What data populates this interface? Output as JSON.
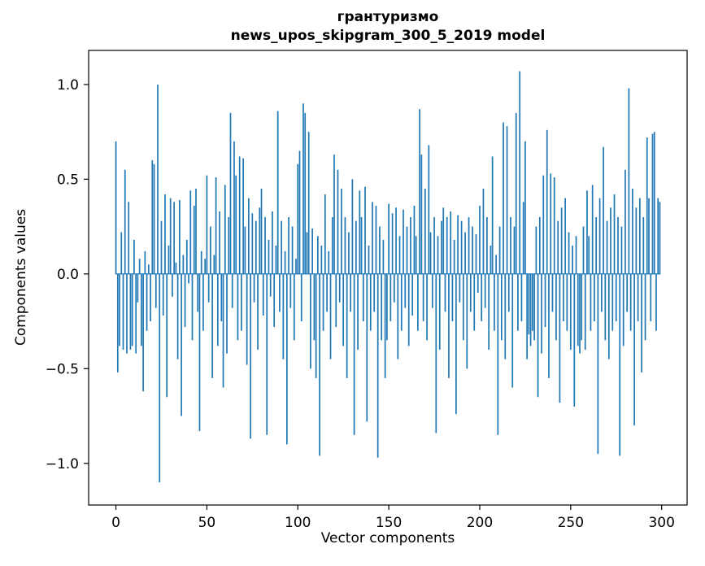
{
  "figure": {
    "title_line1": "грантуризмо",
    "title_line2": "news_upos_skipgram_300_5_2019 model",
    "xlabel": "Vector components",
    "ylabel": "Components values"
  },
  "chart_data": {
    "type": "bar",
    "title": "грантуризмо",
    "subtitle": "news_upos_skipgram_300_5_2019 model",
    "xlabel": "Vector components",
    "ylabel": "Components values",
    "grid": false,
    "legend": false,
    "bar_color": "#1f77b4",
    "xlim": [
      -15,
      314
    ],
    "ylim": [
      -1.22,
      1.18
    ],
    "xticks": [
      0,
      50,
      100,
      150,
      200,
      250,
      300
    ],
    "yticks": [
      -1.0,
      -0.5,
      0.0,
      0.5,
      1.0
    ],
    "n_components": 300,
    "values": [
      0.7,
      -0.52,
      -0.38,
      0.22,
      -0.4,
      0.55,
      -0.42,
      0.38,
      -0.4,
      -0.38,
      0.18,
      -0.42,
      -0.15,
      0.08,
      -0.38,
      -0.62,
      0.12,
      -0.3,
      0.05,
      -0.25,
      0.6,
      0.58,
      -0.18,
      1.0,
      -1.1,
      0.28,
      -0.22,
      0.42,
      -0.65,
      0.15,
      0.4,
      -0.12,
      0.38,
      0.06,
      -0.45,
      0.39,
      -0.75,
      0.1,
      -0.28,
      0.18,
      -0.05,
      0.44,
      -0.35,
      0.36,
      0.45,
      -0.2,
      -0.83,
      0.12,
      -0.3,
      0.08,
      0.52,
      -0.15,
      0.25,
      -0.55,
      0.1,
      0.51,
      -0.38,
      0.33,
      -0.25,
      -0.6,
      0.47,
      -0.42,
      0.3,
      0.85,
      -0.18,
      0.7,
      0.52,
      -0.35,
      0.62,
      -0.3,
      0.61,
      0.25,
      -0.48,
      0.4,
      -0.87,
      0.32,
      -0.15,
      0.28,
      -0.4,
      0.35,
      0.45,
      -0.22,
      0.3,
      -0.85,
      0.18,
      -0.12,
      0.33,
      -0.28,
      0.15,
      0.86,
      -0.2,
      0.28,
      -0.45,
      0.12,
      -0.9,
      0.3,
      -0.18,
      0.25,
      -0.35,
      0.08,
      0.58,
      0.65,
      -0.25,
      0.9,
      0.85,
      0.22,
      0.75,
      -0.5,
      0.24,
      -0.35,
      -0.55,
      0.2,
      -0.96,
      0.15,
      -0.3,
      0.42,
      -0.2,
      0.12,
      -0.45,
      0.3,
      0.63,
      -0.28,
      0.55,
      -0.15,
      0.45,
      -0.38,
      0.3,
      -0.55,
      0.22,
      -0.2,
      0.5,
      -0.85,
      0.28,
      -0.4,
      0.44,
      0.3,
      -0.25,
      0.46,
      -0.78,
      0.15,
      -0.3,
      0.38,
      -0.2,
      0.36,
      -0.97,
      0.25,
      -0.35,
      0.18,
      -0.55,
      -0.35,
      0.37,
      -0.25,
      0.32,
      -0.15,
      0.35,
      -0.45,
      0.2,
      -0.3,
      0.34,
      -0.18,
      0.25,
      -0.38,
      0.3,
      -0.22,
      0.36,
      0.2,
      -0.3,
      0.87,
      0.63,
      -0.25,
      0.45,
      -0.35,
      0.68,
      0.22,
      -0.18,
      0.3,
      -0.84,
      0.2,
      -0.4,
      0.28,
      0.35,
      -0.2,
      0.3,
      -0.55,
      0.33,
      -0.25,
      0.18,
      -0.74,
      0.31,
      -0.15,
      0.28,
      -0.35,
      0.22,
      -0.5,
      0.3,
      -0.2,
      0.25,
      -0.3,
      0.21,
      -0.1,
      0.36,
      -0.25,
      0.45,
      -0.18,
      0.3,
      -0.4,
      0.15,
      0.62,
      -0.3,
      0.1,
      -0.85,
      0.25,
      -0.35,
      0.8,
      -0.45,
      0.78,
      -0.2,
      0.3,
      -0.6,
      0.25,
      0.85,
      -0.3,
      1.07,
      -0.25,
      0.38,
      0.7,
      -0.45,
      -0.32,
      -0.38,
      -0.3,
      -0.35,
      0.25,
      -0.65,
      0.3,
      -0.42,
      0.52,
      -0.28,
      0.76,
      -0.55,
      0.53,
      -0.2,
      0.51,
      -0.35,
      0.28,
      -0.68,
      0.35,
      -0.25,
      0.4,
      -0.3,
      0.22,
      -0.4,
      0.15,
      -0.7,
      0.2,
      -0.38,
      -0.42,
      -0.35,
      0.25,
      -0.4,
      0.44,
      0.2,
      -0.3,
      0.47,
      -0.25,
      0.3,
      -0.95,
      0.4,
      -0.2,
      0.67,
      -0.35,
      0.28,
      -0.45,
      0.35,
      -0.3,
      0.42,
      -0.25,
      0.3,
      -0.96,
      0.25,
      -0.38,
      0.55,
      -0.2,
      0.98,
      -0.3,
      0.45,
      -0.8,
      0.35,
      -0.25,
      0.4,
      -0.52,
      0.3,
      -0.35,
      0.72,
      0.4,
      -0.25,
      0.74,
      0.75,
      -0.3,
      0.4,
      0.38
    ]
  }
}
